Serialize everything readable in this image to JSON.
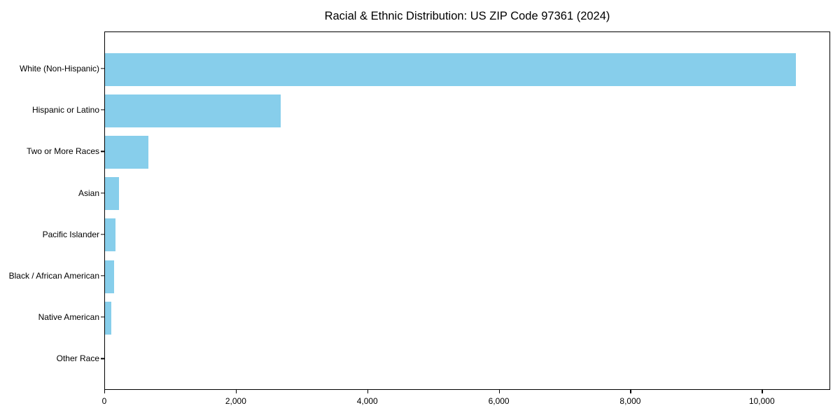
{
  "chart_data": {
    "type": "bar",
    "orientation": "horizontal",
    "title": "Racial & Ethnic Distribution: US ZIP Code 97361 (2024)",
    "categories": [
      "White (Non-Hispanic)",
      "Hispanic or Latino",
      "Two or More Races",
      "Asian",
      "Pacific Islander",
      "Black / African American",
      "Native American",
      "Other Race"
    ],
    "values": [
      10510,
      2670,
      660,
      215,
      160,
      140,
      100,
      0
    ],
    "title_text": "",
    "xlabel": "",
    "ylabel": "",
    "xlim": [
      0,
      11040
    ],
    "x_ticks": [
      0,
      2000,
      4000,
      6000,
      8000,
      10000
    ],
    "x_tick_labels": [
      "0",
      "2,000",
      "4,000",
      "6,000",
      "8,000",
      "10,000"
    ],
    "bar_color": "#87CEEB",
    "grid": false,
    "legend_position": "none"
  }
}
